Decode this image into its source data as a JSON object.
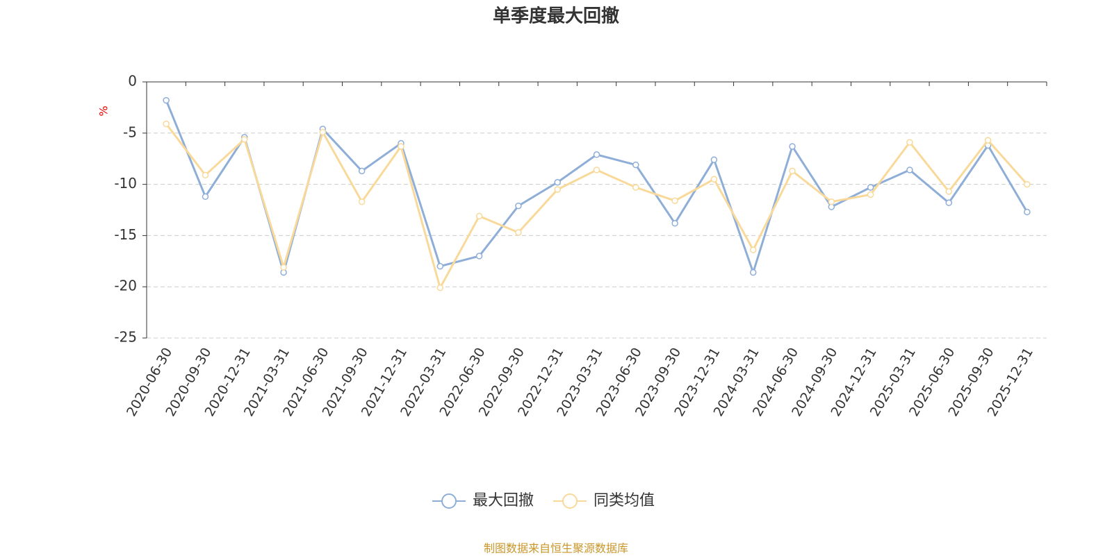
{
  "chart_data": {
    "type": "line",
    "title": "单季度最大回撤",
    "y_label": "%",
    "categories": [
      "2020-06-30",
      "2020-09-30",
      "2020-12-31",
      "2021-03-31",
      "2021-06-30",
      "2021-09-30",
      "2021-12-31",
      "2022-03-31",
      "2022-06-30",
      "2022-09-30",
      "2022-12-31",
      "2023-03-31",
      "2023-06-30",
      "2023-09-30",
      "2023-12-31",
      "2024-03-31",
      "2024-06-30",
      "2024-09-30",
      "2024-12-31",
      "2025-03-31",
      "2025-06-30",
      "2025-09-30",
      "2025-12-31"
    ],
    "series": [
      {
        "name": "最大回撤",
        "color": "#8eaed8",
        "values": [
          -1.8,
          -11.2,
          -5.4,
          -18.6,
          -4.6,
          -8.7,
          -6.0,
          -18.0,
          -17.0,
          -12.1,
          -9.8,
          -7.1,
          -8.1,
          -13.8,
          -7.6,
          -18.6,
          -6.3,
          -12.2,
          -10.3,
          -8.6,
          -11.8,
          -6.2,
          -12.7
        ]
      },
      {
        "name": "同类均值",
        "color": "#f9d99a",
        "values": [
          -4.1,
          -9.1,
          -5.6,
          -18.1,
          -4.9,
          -11.7,
          -6.3,
          -20.1,
          -13.1,
          -14.7,
          -10.5,
          -8.6,
          -10.3,
          -11.6,
          -9.5,
          -16.4,
          -8.7,
          -11.7,
          -11.0,
          -5.9,
          -10.7,
          -5.7,
          -10.0
        ]
      }
    ],
    "ylim": [
      -25,
      0
    ],
    "yticks": [
      0,
      -5,
      -10,
      -15,
      -20,
      -25
    ],
    "grid": true,
    "legend": "bottom",
    "source": "制图数据来自恒生聚源数据库"
  }
}
